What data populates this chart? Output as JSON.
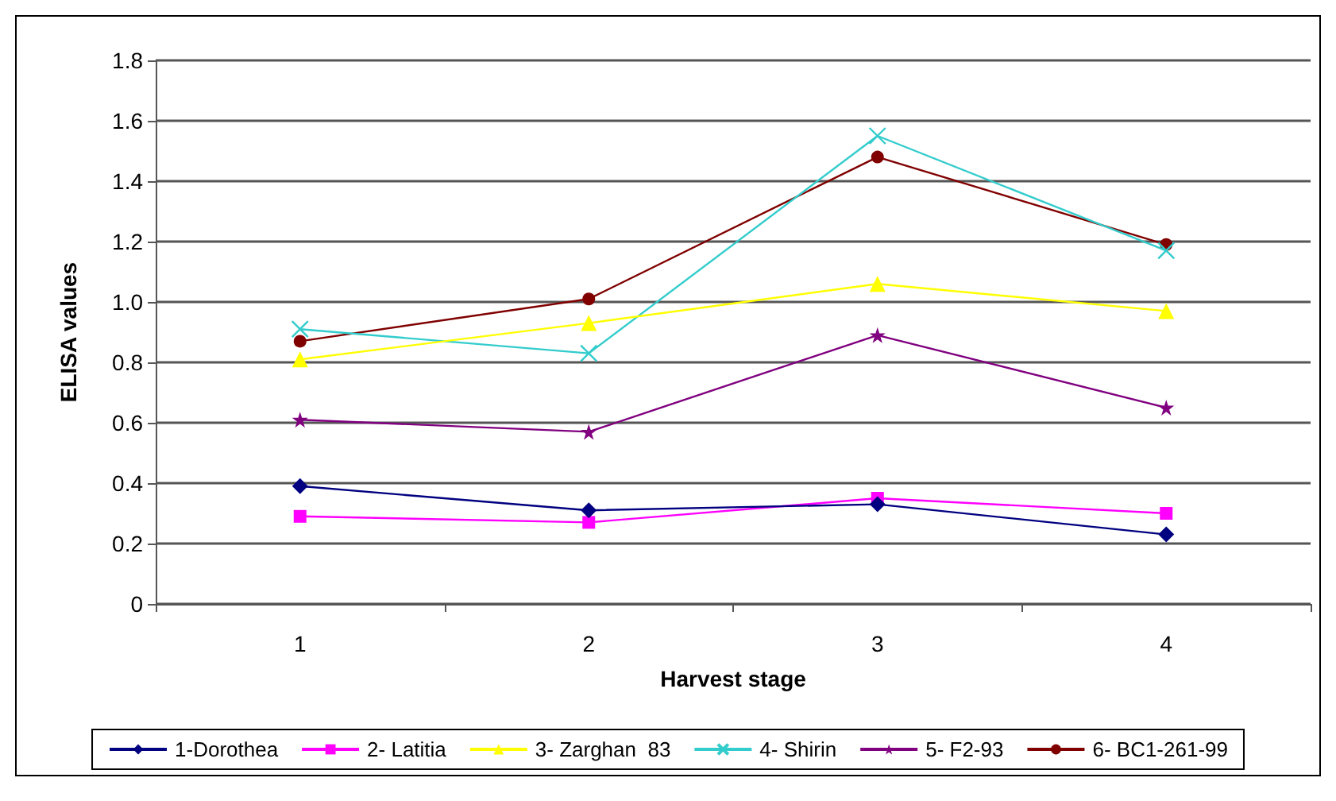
{
  "chart_data": {
    "type": "line",
    "xlabel": "Harvest stage",
    "ylabel": "ELISA values",
    "categories": [
      "1",
      "2",
      "3",
      "4"
    ],
    "series": [
      {
        "name": "1-Dorothea",
        "color": "#000080",
        "marker": "diamond",
        "values": [
          0.39,
          0.31,
          0.33,
          0.23
        ]
      },
      {
        "name": "2- Latitia",
        "color": "#ff00ff",
        "marker": "square",
        "values": [
          0.29,
          0.27,
          0.35,
          0.3
        ]
      },
      {
        "name": "3- Zarghan  83",
        "color": "#ffff00",
        "marker": "triangle",
        "values": [
          0.81,
          0.93,
          1.06,
          0.97
        ]
      },
      {
        "name": "4- Shirin",
        "color": "#33cccc",
        "marker": "cross",
        "values": [
          0.91,
          0.83,
          1.55,
          1.17
        ]
      },
      {
        "name": "5- F2-93",
        "color": "#800080",
        "marker": "star",
        "values": [
          0.61,
          0.57,
          0.89,
          0.65
        ]
      },
      {
        "name": "6- BC1-261-99",
        "color": "#800000",
        "marker": "circle",
        "values": [
          0.87,
          1.01,
          1.48,
          1.19
        ]
      }
    ],
    "ylim": [
      0,
      1.8
    ],
    "yticks": [
      0,
      {
        "value": 0.2,
        "label": "0.2"
      },
      {
        "value": 0.4,
        "label": "0.4"
      },
      {
        "value": 0.6,
        "label": "0.6"
      },
      {
        "value": 0.8,
        "label": "0.8"
      },
      {
        "value": 1.0,
        "label": "1.0"
      },
      {
        "value": 1.2,
        "label": "1.2"
      },
      {
        "value": 1.4,
        "label": "1.4"
      },
      {
        "value": 1.6,
        "label": "1.6"
      },
      {
        "value": 1.8,
        "label": "1.8"
      }
    ],
    "grid": "y",
    "legend": "bottom",
    "line_style": "solid"
  }
}
